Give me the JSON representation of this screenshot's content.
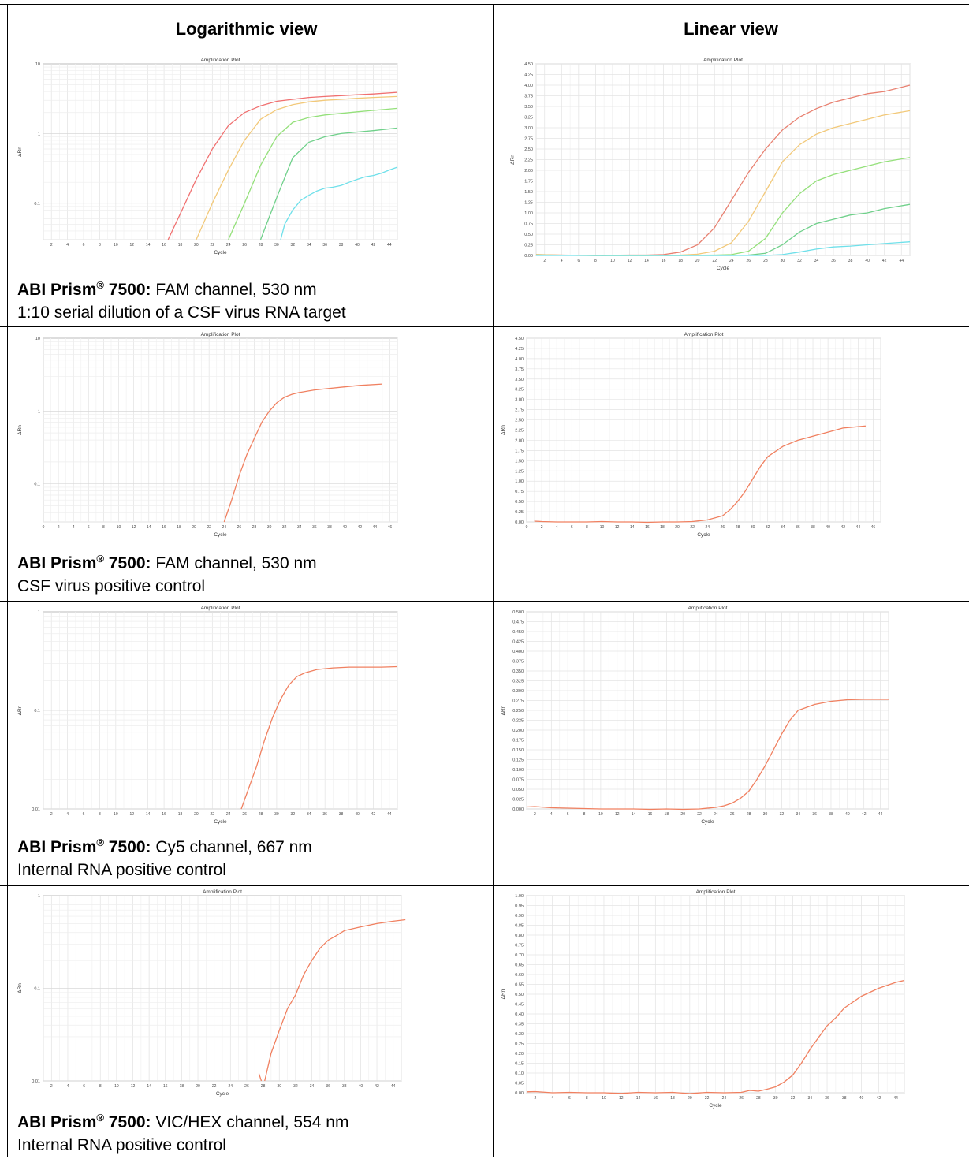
{
  "table": {
    "header_left": "Logarithmic view",
    "header_right": "Linear view"
  },
  "rows": [
    {
      "brand": "ABI Prism",
      "reg": "®",
      "model": " 7500:",
      "channel": " FAM channel, 530 nm",
      "desc": "1:10 serial dilution of a CSF virus RNA target"
    },
    {
      "brand": "ABI Prism",
      "reg": "®",
      "model": " 7500:",
      "channel": " FAM channel, 530 nm",
      "desc": "CSF virus positive control"
    },
    {
      "brand": "ABI Prism",
      "reg": "®",
      "model": " 7500:",
      "channel": " Cy5 channel, 667 nm",
      "desc": "Internal RNA positive control"
    },
    {
      "brand": "ABI Prism",
      "reg": "®",
      "model": " 7500:",
      "channel": " VIC/HEX channel, 554 nm",
      "desc": "Internal RNA positive control"
    }
  ],
  "chart_data": [
    {
      "type": "line",
      "title": "Amplification Plot",
      "xlabel": "Cycle",
      "ylabel": "ΔRn",
      "yscale": "log",
      "xlim": [
        1,
        45
      ],
      "ylim": [
        0.03,
        10
      ],
      "xticks": [
        2,
        4,
        6,
        8,
        10,
        12,
        14,
        16,
        18,
        20,
        22,
        24,
        26,
        28,
        30,
        32,
        34,
        36,
        38,
        40,
        42,
        44
      ],
      "yticks": [
        0.1,
        1,
        10
      ],
      "ytick_labels": [
        "0.1",
        "1",
        "10"
      ],
      "series": [
        {
          "color": "#f07070",
          "x": [
            16.5,
            18,
            20,
            22,
            24,
            26,
            28,
            30,
            32,
            34,
            36,
            38,
            40,
            42,
            45
          ],
          "y": [
            0.03,
            0.07,
            0.22,
            0.6,
            1.3,
            2.0,
            2.5,
            2.9,
            3.1,
            3.3,
            3.4,
            3.5,
            3.6,
            3.7,
            3.9
          ]
        },
        {
          "color": "#f2c97a",
          "x": [
            20,
            22,
            24,
            26,
            28,
            30,
            32,
            34,
            36,
            38,
            40,
            42,
            45
          ],
          "y": [
            0.03,
            0.1,
            0.3,
            0.8,
            1.6,
            2.2,
            2.6,
            2.85,
            3.0,
            3.1,
            3.2,
            3.3,
            3.4
          ]
        },
        {
          "color": "#94e07a",
          "x": [
            24,
            26,
            28,
            30,
            32,
            34,
            36,
            38,
            40,
            42,
            45
          ],
          "y": [
            0.03,
            0.1,
            0.35,
            0.9,
            1.45,
            1.7,
            1.85,
            1.95,
            2.05,
            2.15,
            2.3
          ]
        },
        {
          "color": "#6fd08a",
          "x": [
            28,
            30,
            32,
            34,
            36,
            38,
            40,
            42,
            45
          ],
          "y": [
            0.03,
            0.12,
            0.45,
            0.75,
            0.9,
            1.0,
            1.05,
            1.1,
            1.2
          ]
        },
        {
          "color": "#6fe0ea",
          "x": [
            30.5,
            31,
            32,
            33,
            34,
            35,
            36,
            37,
            38,
            39,
            40,
            41,
            42,
            43,
            44,
            45
          ],
          "y": [
            0.03,
            0.05,
            0.08,
            0.11,
            0.13,
            0.15,
            0.165,
            0.17,
            0.18,
            0.2,
            0.22,
            0.24,
            0.25,
            0.27,
            0.3,
            0.33
          ]
        }
      ]
    },
    {
      "type": "line",
      "title": "Amplification Plot",
      "xlabel": "Cycle",
      "ylabel": "ΔRn",
      "xlim": [
        1,
        45
      ],
      "ylim": [
        0,
        4.5
      ],
      "xticks": [
        2,
        4,
        6,
        8,
        10,
        12,
        14,
        16,
        18,
        20,
        22,
        24,
        26,
        28,
        30,
        32,
        34,
        36,
        38,
        40,
        42,
        44
      ],
      "yticks": [
        0,
        0.25,
        0.5,
        0.75,
        1,
        1.25,
        1.5,
        1.75,
        2,
        2.25,
        2.5,
        2.75,
        3,
        3.25,
        3.5,
        3.75,
        4,
        4.25,
        4.5
      ],
      "ytick_labels": [
        "0.00",
        "0.25",
        "0.50",
        "0.75",
        "1.00",
        "1.25",
        "1.50",
        "1.75",
        "2.00",
        "2.25",
        "2.50",
        "2.75",
        "3.00",
        "3.25",
        "3.50",
        "3.75",
        "4.00",
        "4.25",
        "4.50"
      ],
      "series": [
        {
          "color": "#e88070",
          "x": [
            1,
            4,
            8,
            12,
            14,
            16,
            18,
            20,
            22,
            24,
            26,
            28,
            30,
            32,
            34,
            36,
            38,
            40,
            42,
            45
          ],
          "y": [
            0.02,
            0.01,
            0,
            0.01,
            0.01,
            0.02,
            0.08,
            0.25,
            0.65,
            1.3,
            1.95,
            2.5,
            2.95,
            3.25,
            3.45,
            3.6,
            3.7,
            3.8,
            3.85,
            4.0
          ]
        },
        {
          "color": "#f2c97a",
          "x": [
            1,
            6,
            10,
            14,
            18,
            20,
            22,
            24,
            26,
            28,
            30,
            32,
            34,
            36,
            38,
            40,
            42,
            45
          ],
          "y": [
            0.02,
            0.0,
            0.0,
            0,
            0.01,
            0.03,
            0.1,
            0.3,
            0.8,
            1.5,
            2.2,
            2.6,
            2.85,
            3.0,
            3.1,
            3.2,
            3.3,
            3.4
          ]
        },
        {
          "color": "#94e07a",
          "x": [
            1,
            8,
            14,
            18,
            22,
            24,
            26,
            28,
            30,
            32,
            34,
            36,
            38,
            40,
            42,
            45
          ],
          "y": [
            0.01,
            0,
            0,
            0,
            0.01,
            0.02,
            0.1,
            0.4,
            1.0,
            1.45,
            1.75,
            1.9,
            2.0,
            2.1,
            2.2,
            2.3
          ]
        },
        {
          "color": "#6fd08a",
          "x": [
            1,
            10,
            18,
            24,
            26,
            28,
            30,
            32,
            34,
            36,
            38,
            40,
            42,
            45
          ],
          "y": [
            0.01,
            0,
            0,
            0.0,
            0.01,
            0.05,
            0.25,
            0.55,
            0.75,
            0.85,
            0.95,
            1.0,
            1.1,
            1.2
          ]
        },
        {
          "color": "#6fe0ea",
          "x": [
            1,
            12,
            20,
            26,
            28,
            30,
            32,
            34,
            36,
            38,
            40,
            42,
            45
          ],
          "y": [
            0.0,
            0,
            0,
            0,
            0.0,
            0.02,
            0.08,
            0.15,
            0.2,
            0.22,
            0.25,
            0.28,
            0.32
          ]
        }
      ]
    },
    {
      "type": "line",
      "title": "Amplification Plot",
      "xlabel": "Cycle",
      "ylabel": "ΔRn",
      "yscale": "log",
      "xlim": [
        0,
        47
      ],
      "ylim": [
        0.03,
        10
      ],
      "xticks": [
        0,
        2,
        4,
        6,
        8,
        10,
        12,
        14,
        16,
        18,
        20,
        22,
        24,
        26,
        28,
        30,
        32,
        34,
        36,
        38,
        40,
        42,
        44,
        46
      ],
      "yticks": [
        0.1,
        1,
        10
      ],
      "ytick_labels": [
        "0.1",
        "1",
        "10"
      ],
      "series": [
        {
          "color": "#f08060",
          "x": [
            24,
            25,
            26,
            27,
            28,
            29,
            30,
            31,
            32,
            33,
            34,
            36,
            38,
            40,
            42,
            45
          ],
          "y": [
            0.03,
            0.06,
            0.13,
            0.25,
            0.42,
            0.7,
            1.0,
            1.3,
            1.55,
            1.7,
            1.8,
            1.95,
            2.05,
            2.15,
            2.25,
            2.35
          ]
        }
      ]
    },
    {
      "type": "line",
      "title": "Amplification Plot",
      "xlabel": "Cycle",
      "ylabel": "ΔRn",
      "xlim": [
        0,
        47
      ],
      "ylim": [
        0,
        4.5
      ],
      "xticks": [
        0,
        2,
        4,
        6,
        8,
        10,
        12,
        14,
        16,
        18,
        20,
        22,
        24,
        26,
        28,
        30,
        32,
        34,
        36,
        38,
        40,
        42,
        44,
        46
      ],
      "yticks": [
        0,
        0.25,
        0.5,
        0.75,
        1,
        1.25,
        1.5,
        1.75,
        2,
        2.25,
        2.5,
        2.75,
        3,
        3.25,
        3.5,
        3.75,
        4,
        4.25,
        4.5
      ],
      "ytick_labels": [
        "0.00",
        "0.25",
        "0.50",
        "0.75",
        "1.00",
        "1.25",
        "1.50",
        "1.75",
        "2.00",
        "2.25",
        "2.50",
        "2.75",
        "3.00",
        "3.25",
        "3.50",
        "3.75",
        "4.00",
        "4.25",
        "4.50"
      ],
      "series": [
        {
          "color": "#f08060",
          "x": [
            1,
            2,
            4,
            6,
            8,
            10,
            12,
            14,
            16,
            18,
            20,
            22,
            24,
            26,
            27,
            28,
            29,
            30,
            31,
            32,
            34,
            36,
            38,
            40,
            42,
            45
          ],
          "y": [
            0.02,
            0.01,
            0.0,
            0.0,
            0.0,
            0.01,
            0.0,
            0.0,
            -0.01,
            0.0,
            0.0,
            0.01,
            0.05,
            0.15,
            0.3,
            0.5,
            0.75,
            1.05,
            1.35,
            1.6,
            1.85,
            2.0,
            2.1,
            2.2,
            2.3,
            2.35
          ]
        }
      ]
    },
    {
      "type": "line",
      "title": "Amplification Plot",
      "xlabel": "Cycle",
      "ylabel": "ΔRn",
      "yscale": "log",
      "xlim": [
        1,
        45
      ],
      "ylim": [
        0.01,
        1
      ],
      "xticks": [
        2,
        4,
        6,
        8,
        10,
        12,
        14,
        16,
        18,
        20,
        22,
        24,
        26,
        28,
        30,
        32,
        34,
        36,
        38,
        40,
        42,
        44
      ],
      "yticks": [
        0.01,
        0.1,
        1
      ],
      "ytick_labels": [
        "0.01",
        "0.1",
        "1"
      ],
      "series": [
        {
          "color": "#f08060",
          "x": [
            25.6,
            26.5,
            27.5,
            28.5,
            29.5,
            30.5,
            31.5,
            32.5,
            33.5,
            35,
            37,
            39,
            41,
            43,
            45
          ],
          "y": [
            0.01,
            0.016,
            0.027,
            0.05,
            0.085,
            0.13,
            0.18,
            0.22,
            0.24,
            0.26,
            0.27,
            0.275,
            0.275,
            0.275,
            0.278
          ]
        }
      ]
    },
    {
      "type": "line",
      "title": "Amplification Plot",
      "xlabel": "Cycle",
      "ylabel": "ΔRn",
      "xlim": [
        1,
        45
      ],
      "ylim": [
        0,
        0.5
      ],
      "xticks": [
        2,
        4,
        6,
        8,
        10,
        12,
        14,
        16,
        18,
        20,
        22,
        24,
        26,
        28,
        30,
        32,
        34,
        36,
        38,
        40,
        42,
        44
      ],
      "yticks": [
        0,
        0.025,
        0.05,
        0.075,
        0.1,
        0.125,
        0.15,
        0.175,
        0.2,
        0.225,
        0.25,
        0.275,
        0.3,
        0.325,
        0.35,
        0.375,
        0.4,
        0.425,
        0.45,
        0.475,
        0.5
      ],
      "ytick_labels": [
        "0.000",
        "0.025",
        "0.050",
        "0.075",
        "0.100",
        "0.125",
        "0.150",
        "0.175",
        "0.200",
        "0.225",
        "0.250",
        "0.275",
        "0.300",
        "0.325",
        "0.350",
        "0.375",
        "0.400",
        "0.425",
        "0.450",
        "0.475",
        "0.500"
      ],
      "series": [
        {
          "color": "#f08060",
          "x": [
            1,
            2,
            4,
            6,
            8,
            10,
            12,
            14,
            16,
            18,
            20,
            22,
            24,
            25,
            26,
            27,
            28,
            29,
            30,
            31,
            32,
            33,
            34,
            36,
            38,
            40,
            42,
            45
          ],
          "y": [
            0.005,
            0.006,
            0.003,
            0.002,
            0.001,
            0.0,
            0.0,
            0.0,
            -0.001,
            0.0,
            -0.001,
            0.0,
            0.004,
            0.008,
            0.015,
            0.027,
            0.045,
            0.075,
            0.11,
            0.15,
            0.19,
            0.225,
            0.25,
            0.265,
            0.273,
            0.277,
            0.278,
            0.278
          ]
        }
      ]
    },
    {
      "type": "line",
      "title": "Amplification Plot",
      "xlabel": "Cycle",
      "ylabel": "ΔRn",
      "yscale": "log",
      "xlim": [
        1,
        45
      ],
      "ylim": [
        0.01,
        1
      ],
      "xticks": [
        2,
        4,
        6,
        8,
        10,
        12,
        14,
        16,
        18,
        20,
        22,
        24,
        26,
        28,
        30,
        32,
        34,
        36,
        38,
        40,
        42,
        44
      ],
      "yticks": [
        0.01,
        0.1,
        1
      ],
      "ytick_labels": [
        "0.01",
        "0.1",
        "1"
      ],
      "series": [
        {
          "color": "#f08060",
          "x": [
            27.5,
            27.8
          ],
          "y": [
            0.012,
            0.01
          ]
        },
        {
          "color": "#f08060",
          "x": [
            28.2,
            29,
            30,
            31,
            32,
            33,
            34,
            35,
            36,
            37,
            38,
            40,
            42,
            44,
            45.5
          ],
          "y": [
            0.01,
            0.02,
            0.035,
            0.06,
            0.085,
            0.14,
            0.2,
            0.27,
            0.33,
            0.37,
            0.42,
            0.46,
            0.5,
            0.53,
            0.55
          ]
        }
      ]
    },
    {
      "type": "line",
      "title": "Amplification Plot",
      "xlabel": "Cycle",
      "ylabel": "ΔRn",
      "xlim": [
        1,
        45
      ],
      "ylim": [
        0,
        1
      ],
      "xticks": [
        2,
        4,
        6,
        8,
        10,
        12,
        14,
        16,
        18,
        20,
        22,
        24,
        26,
        28,
        30,
        32,
        34,
        36,
        38,
        40,
        42,
        44
      ],
      "yticks": [
        0,
        0.05,
        0.1,
        0.15,
        0.2,
        0.25,
        0.3,
        0.35,
        0.4,
        0.45,
        0.5,
        0.55,
        0.6,
        0.65,
        0.7,
        0.75,
        0.8,
        0.85,
        0.9,
        0.95,
        1
      ],
      "ytick_labels": [
        "0.00",
        "0.05",
        "0.10",
        "0.15",
        "0.20",
        "0.25",
        "0.30",
        "0.35",
        "0.40",
        "0.45",
        "0.50",
        "0.55",
        "0.60",
        "0.65",
        "0.70",
        "0.75",
        "0.80",
        "0.85",
        "0.90",
        "0.95",
        "1.00"
      ],
      "series": [
        {
          "color": "#f08060",
          "x": [
            1,
            2,
            4,
            6,
            8,
            10,
            12,
            14,
            16,
            18,
            20,
            22,
            24,
            26,
            27,
            28,
            29,
            30,
            31,
            32,
            33,
            34,
            35,
            36,
            37,
            38,
            40,
            42,
            44,
            45
          ],
          "y": [
            0.005,
            0.006,
            0.0,
            0.002,
            0.0,
            0.0,
            -0.003,
            0.002,
            0.0,
            0.002,
            -0.004,
            0.002,
            0.0,
            0.002,
            0.012,
            0.008,
            0.018,
            0.03,
            0.055,
            0.09,
            0.15,
            0.22,
            0.28,
            0.34,
            0.38,
            0.43,
            0.49,
            0.53,
            0.56,
            0.57
          ]
        }
      ]
    }
  ]
}
